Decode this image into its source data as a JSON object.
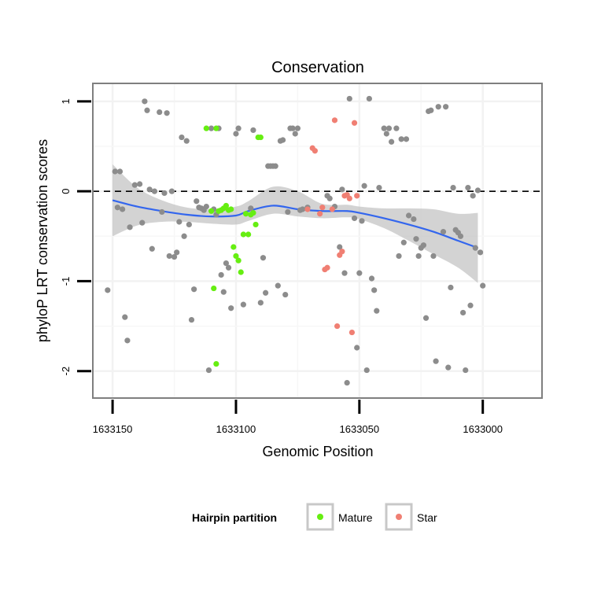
{
  "chart_data": {
    "type": "scatter",
    "title": "Conservation",
    "xlabel": "Genomic Position",
    "ylabel": "phyloP LRT conservation scores",
    "x_reversed": true,
    "xlim": [
      1633158,
      1632976
    ],
    "ylim": [
      -2.3,
      1.2
    ],
    "x_ticks": [
      1633150,
      1633100,
      1633050,
      1633000
    ],
    "x_tick_labels": [
      "1633150",
      "1633100",
      "1633050",
      "1633000"
    ],
    "y_ticks": [
      -2,
      -1,
      0,
      1
    ],
    "y_tick_labels": [
      "-2",
      "-1",
      "0",
      "1"
    ],
    "reference_line": {
      "y": 0,
      "style": "dashed"
    },
    "grid": true,
    "legend": {
      "title": "Hairpin partition",
      "placement": "bottom"
    },
    "colors": {
      "other": "#8c8c8c",
      "Mature": "#66ee11",
      "Star": "#f07f73",
      "smooth": "#3366ee",
      "ribbon": "#c0c0c0"
    },
    "series": [
      {
        "key": "other",
        "color": "#8c8c8c",
        "points": [
          [
            1633149,
            0.22
          ],
          [
            1633148,
            -0.18
          ],
          [
            1633147,
            0.22
          ],
          [
            1633146,
            -0.2
          ],
          [
            1633145,
            -1.4
          ],
          [
            1633144,
            -1.66
          ],
          [
            1633143,
            -0.4
          ],
          [
            1633141,
            0.07
          ],
          [
            1633139,
            0.08
          ],
          [
            1633138,
            -0.35
          ],
          [
            1633137,
            1.0
          ],
          [
            1633136,
            0.9
          ],
          [
            1633135,
            0.02
          ],
          [
            1633134,
            -0.64
          ],
          [
            1633133,
            0.0
          ],
          [
            1633131,
            0.88
          ],
          [
            1633130,
            -0.23
          ],
          [
            1633129,
            -0.02
          ],
          [
            1633128,
            0.87
          ],
          [
            1633127,
            -0.72
          ],
          [
            1633126,
            0.0
          ],
          [
            1633125,
            -0.73
          ],
          [
            1633124,
            -0.68
          ],
          [
            1633123,
            -0.34
          ],
          [
            1633122,
            0.6
          ],
          [
            1633121,
            -0.5
          ],
          [
            1633120,
            0.56
          ],
          [
            1633119,
            -0.37
          ],
          [
            1633118,
            -1.43
          ],
          [
            1633117,
            -1.09
          ],
          [
            1633116,
            -0.11
          ],
          [
            1633115,
            -0.18
          ],
          [
            1633114,
            -0.19
          ],
          [
            1633113,
            -0.21
          ],
          [
            1633112,
            -0.17
          ],
          [
            1633111,
            -1.99
          ],
          [
            1633110,
            0.7
          ],
          [
            1633109,
            -0.2
          ],
          [
            1633108,
            -0.26
          ],
          [
            1633107,
            0.7
          ],
          [
            1633106,
            -0.93
          ],
          [
            1633105,
            -1.12
          ],
          [
            1633104,
            -0.8
          ],
          [
            1633103,
            -0.85
          ],
          [
            1633102,
            -1.3
          ],
          [
            1633100,
            0.64
          ],
          [
            1633099,
            0.7
          ],
          [
            1633097,
            -1.26
          ],
          [
            1633094,
            -0.19
          ],
          [
            1633093,
            0.68
          ],
          [
            1633090,
            -1.24
          ],
          [
            1633089,
            -0.74
          ],
          [
            1633088,
            -1.13
          ],
          [
            1633087,
            0.28
          ],
          [
            1633086,
            0.28
          ],
          [
            1633085,
            0.28
          ],
          [
            1633084,
            0.28
          ],
          [
            1633083,
            -1.05
          ],
          [
            1633082,
            0.56
          ],
          [
            1633081,
            0.57
          ],
          [
            1633080,
            -1.15
          ],
          [
            1633079,
            -0.23
          ],
          [
            1633078,
            0.7
          ],
          [
            1633077,
            0.7
          ],
          [
            1633076,
            0.64
          ],
          [
            1633075,
            0.7
          ],
          [
            1633074,
            -0.21
          ],
          [
            1633073,
            -0.2
          ],
          [
            1633071,
            -0.18
          ],
          [
            1633063,
            -0.05
          ],
          [
            1633062,
            -0.08
          ],
          [
            1633060,
            -0.17
          ],
          [
            1633058,
            -0.62
          ],
          [
            1633057,
            0.02
          ],
          [
            1633056,
            -0.91
          ],
          [
            1633055,
            -2.13
          ],
          [
            1633054,
            1.03
          ],
          [
            1633052,
            -0.3
          ],
          [
            1633051,
            -1.74
          ],
          [
            1633050,
            -0.91
          ],
          [
            1633049,
            -0.33
          ],
          [
            1633048,
            0.06
          ],
          [
            1633047,
            -1.99
          ],
          [
            1633046,
            1.03
          ],
          [
            1633045,
            -0.97
          ],
          [
            1633044,
            -1.1
          ],
          [
            1633043,
            -1.33
          ],
          [
            1633042,
            0.04
          ],
          [
            1633040,
            0.7
          ],
          [
            1633039,
            0.64
          ],
          [
            1633038,
            0.7
          ],
          [
            1633037,
            0.55
          ],
          [
            1633035,
            0.7
          ],
          [
            1633034,
            -0.72
          ],
          [
            1633033,
            0.58
          ],
          [
            1633032,
            -0.57
          ],
          [
            1633031,
            0.58
          ],
          [
            1633030,
            -0.27
          ],
          [
            1633028,
            -0.31
          ],
          [
            1633027,
            -0.53
          ],
          [
            1633026,
            -0.72
          ],
          [
            1633025,
            -0.63
          ],
          [
            1633024,
            -0.6
          ],
          [
            1633023,
            -1.41
          ],
          [
            1633022,
            0.89
          ],
          [
            1633021,
            0.9
          ],
          [
            1633020,
            -0.72
          ],
          [
            1633019,
            -1.89
          ],
          [
            1633018,
            0.94
          ],
          [
            1633016,
            -0.45
          ],
          [
            1633015,
            0.94
          ],
          [
            1633014,
            -1.96
          ],
          [
            1633013,
            -1.07
          ],
          [
            1633012,
            0.04
          ],
          [
            1633011,
            -0.43
          ],
          [
            1633010,
            -0.46
          ],
          [
            1633009,
            -0.5
          ],
          [
            1633008,
            -1.35
          ],
          [
            1633007,
            -1.99
          ],
          [
            1633006,
            0.04
          ],
          [
            1633005,
            -1.27
          ],
          [
            1633004,
            -0.05
          ],
          [
            1633003,
            -0.63
          ],
          [
            1633002,
            0.01
          ],
          [
            1633001,
            -0.68
          ],
          [
            1633000,
            -1.05
          ],
          [
            1633152,
            -1.1
          ]
        ]
      },
      {
        "key": "Mature",
        "name": "Mature",
        "color": "#66ee11",
        "points": [
          [
            1633110,
            -0.22
          ],
          [
            1633109,
            -1.08
          ],
          [
            1633108,
            -1.92
          ],
          [
            1633107,
            -0.22
          ],
          [
            1633106,
            -0.21
          ],
          [
            1633105,
            -0.19
          ],
          [
            1633104,
            -0.16
          ],
          [
            1633103,
            -0.21
          ],
          [
            1633102,
            -0.2
          ],
          [
            1633101,
            -0.62
          ],
          [
            1633100,
            -0.72
          ],
          [
            1633099,
            -0.77
          ],
          [
            1633098,
            -0.9
          ],
          [
            1633097,
            -0.48
          ],
          [
            1633096,
            -0.25
          ],
          [
            1633095,
            -0.48
          ],
          [
            1633094,
            -0.26
          ],
          [
            1633093,
            -0.24
          ],
          [
            1633092,
            -0.37
          ],
          [
            1633091,
            0.6
          ],
          [
            1633090,
            0.6
          ],
          [
            1633112,
            0.7
          ],
          [
            1633108,
            0.7
          ]
        ]
      },
      {
        "key": "Star",
        "name": "Star",
        "color": "#f07f73",
        "points": [
          [
            1633069,
            0.48
          ],
          [
            1633068,
            0.45
          ],
          [
            1633066,
            -0.25
          ],
          [
            1633064,
            -0.87
          ],
          [
            1633063,
            -0.85
          ],
          [
            1633061,
            -0.2
          ],
          [
            1633060,
            0.79
          ],
          [
            1633059,
            -1.5
          ],
          [
            1633058,
            -0.71
          ],
          [
            1633057,
            -0.67
          ],
          [
            1633056,
            -0.05
          ],
          [
            1633055,
            -0.04
          ],
          [
            1633054,
            -0.08
          ],
          [
            1633053,
            -1.57
          ],
          [
            1633052,
            0.76
          ],
          [
            1633051,
            -0.05
          ],
          [
            1633065,
            -0.18
          ],
          [
            1633071,
            -0.2
          ]
        ]
      }
    ],
    "smooth": {
      "x": [
        1633150,
        1633140,
        1633130,
        1633120,
        1633110,
        1633100,
        1633095,
        1633085,
        1633075,
        1633065,
        1633055,
        1633050,
        1633040,
        1633030,
        1633020,
        1633010,
        1633002
      ],
      "y": [
        -0.1,
        -0.17,
        -0.22,
        -0.26,
        -0.28,
        -0.27,
        -0.22,
        -0.16,
        -0.2,
        -0.22,
        -0.22,
        -0.24,
        -0.3,
        -0.37,
        -0.45,
        -0.55,
        -0.63
      ],
      "ymin": [
        -0.5,
        -0.38,
        -0.34,
        -0.34,
        -0.36,
        -0.37,
        -0.33,
        -0.25,
        -0.28,
        -0.3,
        -0.29,
        -0.31,
        -0.41,
        -0.55,
        -0.7,
        -0.85,
        -1.02
      ],
      "ymax": [
        0.3,
        0.04,
        -0.1,
        -0.18,
        -0.2,
        -0.17,
        -0.11,
        0.05,
        0.0,
        -0.14,
        -0.15,
        -0.17,
        -0.19,
        -0.19,
        -0.2,
        -0.25,
        -0.24
      ]
    }
  }
}
